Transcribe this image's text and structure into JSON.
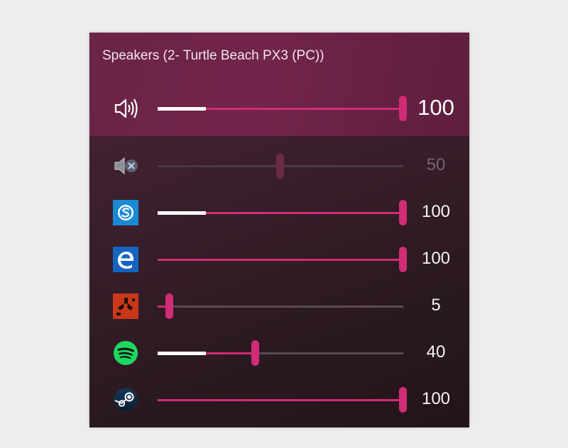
{
  "device": {
    "title": "Speakers (2- Turtle Beach PX3 (PC))",
    "master": {
      "icon": "speaker-volume-icon",
      "value": "100",
      "level": 1.0,
      "highlight": true
    }
  },
  "apps": [
    {
      "name": "System Sounds",
      "icon": "muted-speaker-icon",
      "value": "50",
      "level": 0.5,
      "muted": true,
      "highlight": false
    },
    {
      "name": "Skype",
      "icon": "skype-icon",
      "value": "100",
      "level": 1.0,
      "muted": false,
      "highlight": true
    },
    {
      "name": "Microsoft Edge",
      "icon": "edge-icon",
      "value": "100",
      "level": 1.0,
      "muted": false,
      "highlight": false
    },
    {
      "name": "Rust",
      "icon": "rust-icon",
      "value": "5",
      "level": 0.05,
      "muted": false,
      "highlight": false
    },
    {
      "name": "Spotify",
      "icon": "spotify-icon",
      "value": "40",
      "level": 0.4,
      "muted": false,
      "highlight": true
    },
    {
      "name": "Steam",
      "icon": "steam-icon",
      "value": "100",
      "level": 1.0,
      "muted": false,
      "highlight": false
    }
  ],
  "colors": {
    "accent": "#d12c76",
    "header": "#72244a",
    "panel": "#3c1f2d"
  }
}
